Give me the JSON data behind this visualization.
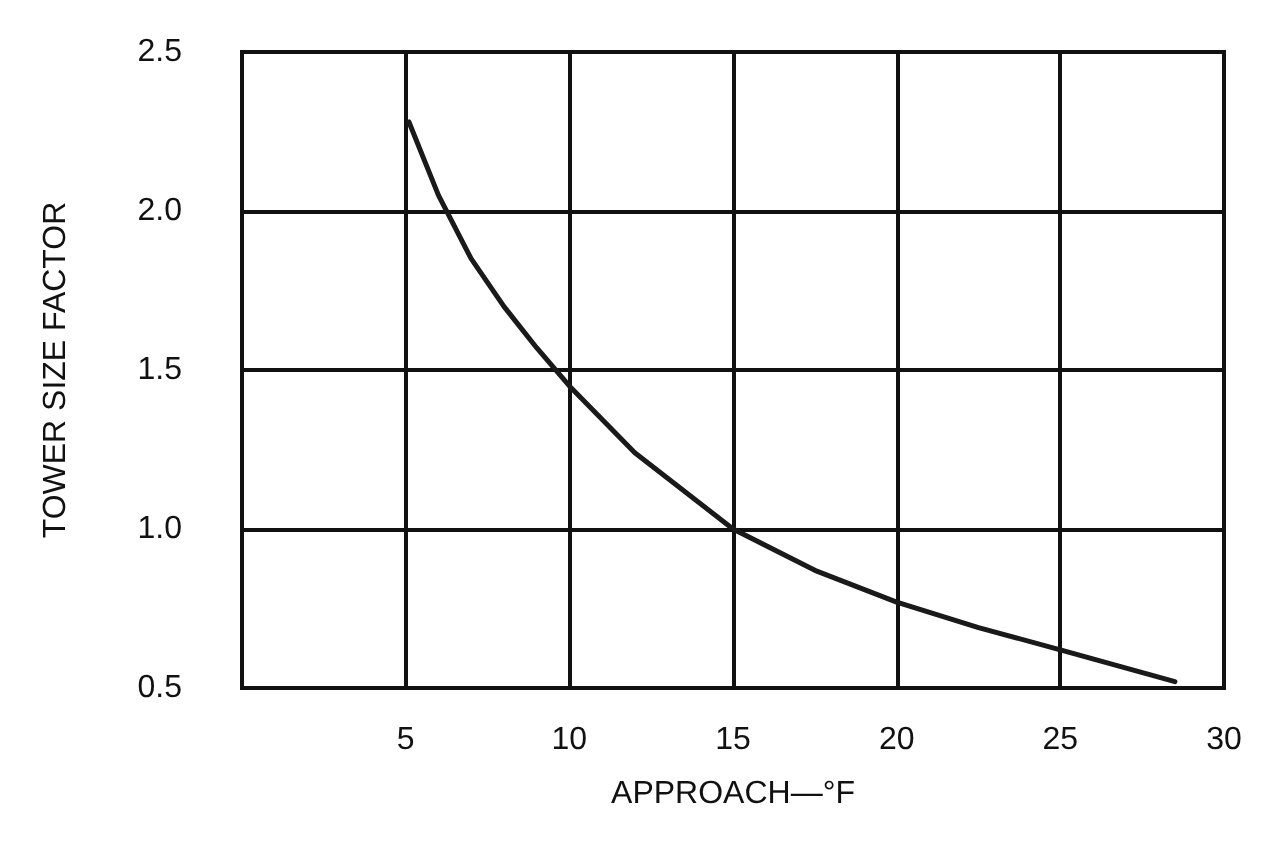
{
  "chart_data": {
    "type": "line",
    "xlabel": "APPROACH—°F",
    "ylabel": "TOWER SIZE FACTOR",
    "x": [
      5.1,
      6,
      7,
      8,
      9,
      10,
      12,
      15,
      17.5,
      20,
      22.5,
      25,
      28.5
    ],
    "series": [
      {
        "color": "#1a1a1a",
        "values": [
          2.28,
          2.05,
          1.85,
          1.7,
          1.57,
          1.45,
          1.24,
          1.0,
          0.87,
          0.77,
          0.69,
          0.62,
          0.52
        ]
      }
    ],
    "xlim": [
      0,
      30
    ],
    "xticks": [
      5,
      10,
      15,
      20,
      25,
      30
    ],
    "ylim": [
      0.5,
      2.5
    ],
    "yticks": [
      {
        "value": 0.5,
        "label": "0.5"
      },
      {
        "value": 1,
        "label": "1.0"
      },
      {
        "value": 1.5,
        "label": "1.5"
      },
      {
        "value": 2,
        "label": "2.0"
      },
      {
        "value": 2.5,
        "label": "2.5"
      }
    ],
    "grid": true,
    "marker": "none",
    "line_style": "solid"
  }
}
